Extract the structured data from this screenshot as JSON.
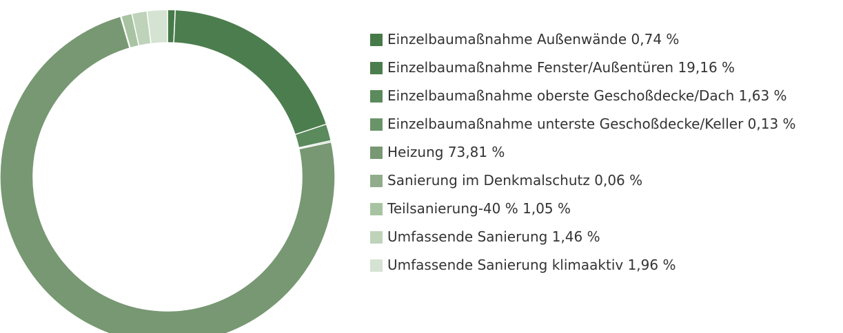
{
  "chart_data": {
    "type": "donut",
    "categories": [
      "Einzelbaumaßnahme Außenwände",
      "Einzelbaumaßnahme Fenster/Außentüren",
      "Einzelbaumaßnahme oberste Geschoßdecke/Dach",
      "Einzelbaumaßnahme unterste Geschoßdecke/Keller",
      "Heizung",
      "Sanierung im Denkmalschutz",
      "Teilsanierung-40 %",
      "Umfassende Sanierung",
      "Umfassende Sanierung klimaaktiv"
    ],
    "values": [
      0.74,
      19.16,
      1.63,
      0.13,
      73.81,
      0.06,
      1.05,
      1.46,
      1.96
    ],
    "value_labels": [
      "0,74 %",
      "19,16 %",
      "1,63 %",
      "0,13 %",
      "73,81 %",
      "0,06 %",
      "1,05 %",
      "1,46 %",
      "1,96 %"
    ],
    "colors": [
      "#477a49",
      "#4c7d4e",
      "#5b8a5c",
      "#699469",
      "#779872",
      "#90ac8a",
      "#a8c3a2",
      "#bed3b9",
      "#d5e3d2"
    ],
    "legend": "right"
  }
}
